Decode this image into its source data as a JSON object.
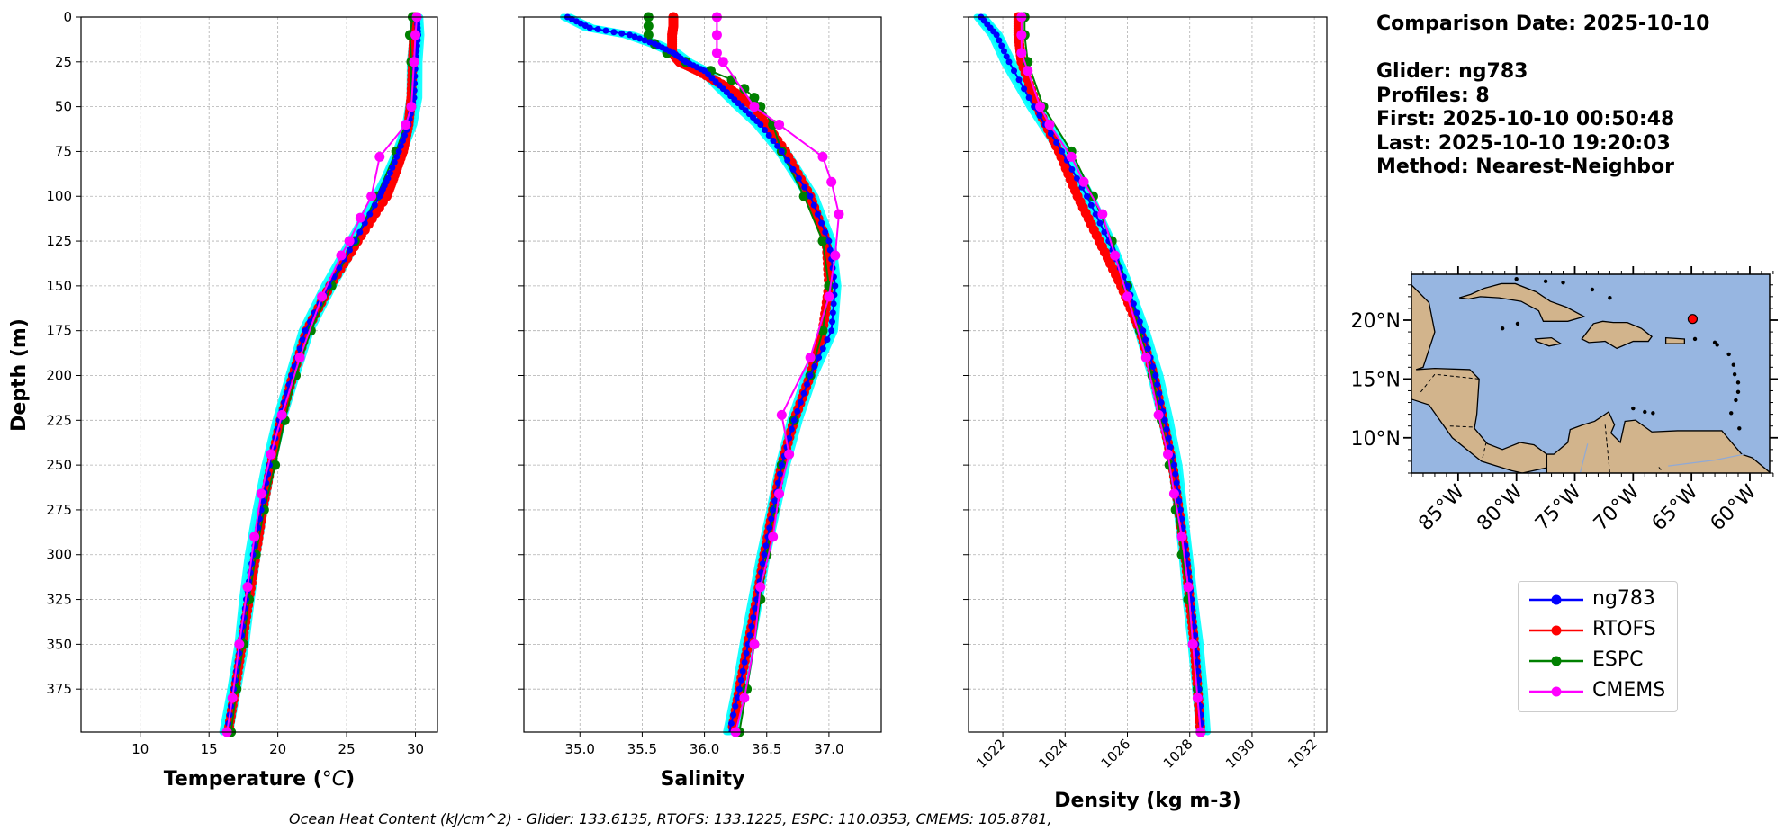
{
  "chart_data": [
    {
      "type": "line",
      "xlabel": "Temperature (°C)",
      "ylabel": "Depth (m)",
      "xlim": [
        5.7,
        31.6
      ],
      "ylim": [
        399,
        0
      ],
      "xticks": [
        10,
        15,
        20,
        25,
        30
      ],
      "yticks": [
        0,
        25,
        50,
        75,
        100,
        125,
        150,
        175,
        200,
        225,
        250,
        275,
        300,
        325,
        350,
        375
      ],
      "grid": true,
      "series": [
        {
          "name": "ng783",
          "color": "#0000ff",
          "depth": [
            0,
            10,
            25,
            45,
            60,
            75,
            90,
            100,
            125,
            150,
            175,
            200,
            225,
            250,
            275,
            300,
            325,
            350,
            375,
            399
          ],
          "values": [
            30.1,
            30.2,
            30.0,
            29.9,
            29.5,
            28.8,
            28.0,
            27.4,
            25.6,
            23.7,
            22.0,
            21.0,
            20.1,
            19.4,
            18.8,
            18.2,
            17.7,
            17.3,
            16.8,
            16.3
          ]
        },
        {
          "name": "RTOFS",
          "color": "#ff0000",
          "depth": [
            0,
            10,
            25,
            45,
            60,
            75,
            90,
            100,
            125,
            150,
            175,
            200,
            225,
            250,
            275,
            300,
            325,
            350,
            375,
            399
          ],
          "values": [
            30.0,
            29.9,
            29.8,
            29.7,
            29.5,
            29.1,
            28.4,
            27.9,
            25.8,
            23.8,
            22.1,
            21.1,
            20.2,
            19.5,
            18.9,
            18.4,
            17.9,
            17.4,
            16.9,
            16.4
          ]
        },
        {
          "name": "ESPC",
          "color": "#008000",
          "depth": [
            0,
            10,
            25,
            50,
            75,
            100,
            125,
            150,
            175,
            200,
            225,
            250,
            275,
            300,
            325,
            350,
            375,
            399
          ],
          "values": [
            29.8,
            29.6,
            29.7,
            29.7,
            28.6,
            27.2,
            25.6,
            23.9,
            22.4,
            21.3,
            20.5,
            19.8,
            19.0,
            18.4,
            17.9,
            17.5,
            17.0,
            16.6
          ]
        },
        {
          "name": "CMEMS",
          "color": "#ff00ff",
          "depth": [
            0,
            10,
            25,
            50,
            60,
            78,
            100,
            112,
            125,
            133,
            156,
            190,
            222,
            244,
            266,
            290,
            318,
            350,
            380,
            399
          ],
          "values": [
            30.1,
            30.0,
            29.9,
            29.7,
            29.3,
            27.4,
            26.8,
            26.0,
            25.2,
            24.6,
            23.2,
            21.6,
            20.3,
            19.5,
            18.8,
            18.3,
            17.8,
            17.2,
            16.7,
            16.3
          ]
        }
      ]
    },
    {
      "type": "line",
      "xlabel": "Salinity",
      "ylabel": "",
      "xlim": [
        34.55,
        37.42
      ],
      "ylim": [
        399,
        0
      ],
      "xticks": [
        35.0,
        35.5,
        36.0,
        36.5,
        37.0
      ],
      "grid": true,
      "series": [
        {
          "name": "ng783",
          "color": "#0000ff",
          "depth": [
            0,
            6,
            10,
            15,
            20,
            25,
            30,
            40,
            50,
            60,
            75,
            100,
            125,
            150,
            175,
            200,
            225,
            250,
            275,
            300,
            325,
            350,
            375,
            399
          ],
          "values": [
            34.9,
            35.08,
            35.4,
            35.6,
            35.75,
            35.85,
            36.0,
            36.15,
            36.3,
            36.45,
            36.62,
            36.85,
            37.0,
            37.05,
            37.02,
            36.85,
            36.72,
            36.62,
            36.55,
            36.48,
            36.42,
            36.35,
            36.28,
            36.2
          ]
        },
        {
          "name": "RTOFS",
          "color": "#ff0000",
          "depth": [
            0,
            5,
            10,
            20,
            25,
            30,
            40,
            50,
            75,
            100,
            125,
            150,
            175,
            200,
            225,
            250,
            275,
            300,
            325,
            350,
            375,
            399
          ],
          "values": [
            35.75,
            35.75,
            35.74,
            35.74,
            35.8,
            35.95,
            36.2,
            36.4,
            36.65,
            36.85,
            36.98,
            37.0,
            36.95,
            36.85,
            36.72,
            36.62,
            36.55,
            36.48,
            36.42,
            36.35,
            36.28,
            36.22
          ]
        },
        {
          "name": "ESPC",
          "color": "#008000",
          "depth": [
            0,
            5,
            10,
            15,
            20,
            25,
            30,
            35,
            40,
            45,
            50,
            60,
            75,
            100,
            125,
            150,
            175,
            200,
            225,
            250,
            275,
            300,
            325,
            350,
            375,
            399
          ],
          "values": [
            35.55,
            35.55,
            35.55,
            35.6,
            35.7,
            35.85,
            36.05,
            36.22,
            36.32,
            36.4,
            36.45,
            36.55,
            36.62,
            36.8,
            36.95,
            37.0,
            36.95,
            36.85,
            36.72,
            36.62,
            36.56,
            36.5,
            36.45,
            36.4,
            36.34,
            36.28
          ]
        },
        {
          "name": "CMEMS",
          "color": "#ff00ff",
          "depth": [
            0,
            10,
            20,
            25,
            50,
            60,
            78,
            92,
            110,
            133,
            156,
            190,
            222,
            244,
            266,
            290,
            318,
            350,
            380,
            399
          ],
          "values": [
            36.1,
            36.1,
            36.1,
            36.15,
            36.4,
            36.6,
            36.95,
            37.02,
            37.08,
            37.05,
            37.0,
            36.85,
            36.62,
            36.68,
            36.6,
            36.55,
            36.45,
            36.4,
            36.32,
            36.25
          ]
        }
      ]
    },
    {
      "type": "line",
      "xlabel": "Density (kg m-3)",
      "ylabel": "",
      "xlim": [
        1020.9,
        1032.4
      ],
      "ylim": [
        399,
        0
      ],
      "xticks": [
        1022,
        1024,
        1026,
        1028,
        1030,
        1032
      ],
      "grid": true,
      "series": [
        {
          "name": "ng783",
          "color": "#0000ff",
          "depth": [
            0,
            10,
            25,
            50,
            75,
            100,
            125,
            150,
            175,
            200,
            225,
            250,
            275,
            300,
            325,
            350,
            375,
            399
          ],
          "values": [
            1021.3,
            1021.8,
            1022.2,
            1023.0,
            1023.9,
            1024.7,
            1025.4,
            1026.0,
            1026.5,
            1026.9,
            1027.2,
            1027.5,
            1027.7,
            1027.9,
            1028.05,
            1028.2,
            1028.3,
            1028.4
          ]
        },
        {
          "name": "RTOFS",
          "color": "#ff0000",
          "depth": [
            0,
            10,
            25,
            50,
            75,
            100,
            125,
            150,
            175,
            200,
            225,
            250,
            275,
            300,
            325,
            350,
            375,
            399
          ],
          "values": [
            1022.5,
            1022.5,
            1022.6,
            1023.1,
            1023.8,
            1024.4,
            1025.1,
            1025.8,
            1026.4,
            1026.85,
            1027.15,
            1027.45,
            1027.65,
            1027.85,
            1028.0,
            1028.15,
            1028.25,
            1028.35
          ]
        },
        {
          "name": "ESPC",
          "color": "#008000",
          "depth": [
            0,
            10,
            25,
            50,
            75,
            100,
            125,
            150,
            175,
            200,
            225,
            250,
            275,
            300,
            325,
            350,
            375,
            399
          ],
          "values": [
            1022.7,
            1022.7,
            1022.8,
            1023.3,
            1024.2,
            1024.9,
            1025.5,
            1026.0,
            1026.4,
            1026.8,
            1027.1,
            1027.35,
            1027.55,
            1027.75,
            1027.95,
            1028.1,
            1028.25,
            1028.35
          ]
        },
        {
          "name": "CMEMS",
          "color": "#ff00ff",
          "depth": [
            0,
            10,
            20,
            30,
            50,
            60,
            78,
            92,
            110,
            133,
            156,
            190,
            222,
            244,
            266,
            290,
            318,
            350,
            380,
            399
          ],
          "values": [
            1022.6,
            1022.6,
            1022.6,
            1022.8,
            1023.2,
            1023.5,
            1024.2,
            1024.6,
            1025.2,
            1025.6,
            1026.0,
            1026.6,
            1027.0,
            1027.3,
            1027.5,
            1027.75,
            1027.95,
            1028.1,
            1028.25,
            1028.35
          ]
        }
      ]
    }
  ],
  "info": {
    "comparison": "Comparison Date: 2025-10-10",
    "glider": "Glider: ng783",
    "profiles": "Profiles: 8",
    "first": "First: 2025-10-10 00:50:48",
    "last": "Last: 2025-10-10 19:20:03",
    "method": "Method: Nearest-Neighbor"
  },
  "map": {
    "lon_ticks": [
      "85°W",
      "80°W",
      "75°W",
      "70°W",
      "65°W",
      "60°W"
    ],
    "lat_ticks": [
      "20°N",
      "15°N",
      "10°N"
    ],
    "marker": {
      "lon": -64.9,
      "lat": 20.1,
      "color": "#ff0000"
    },
    "ocean_color": "#97b6e1",
    "land_color": "#d2b48c"
  },
  "legend": [
    {
      "label": "ng783",
      "color": "#0000ff"
    },
    {
      "label": "RTOFS",
      "color": "#ff0000"
    },
    {
      "label": "ESPC",
      "color": "#008000"
    },
    {
      "label": "CMEMS",
      "color": "#ff00ff"
    }
  ],
  "footer": "Ocean Heat Content (kJ/cm^2) - Glider: 133.6135,  RTOFS: 133.1225,  ESPC: 110.0353,  CMEMS: 105.8781,"
}
